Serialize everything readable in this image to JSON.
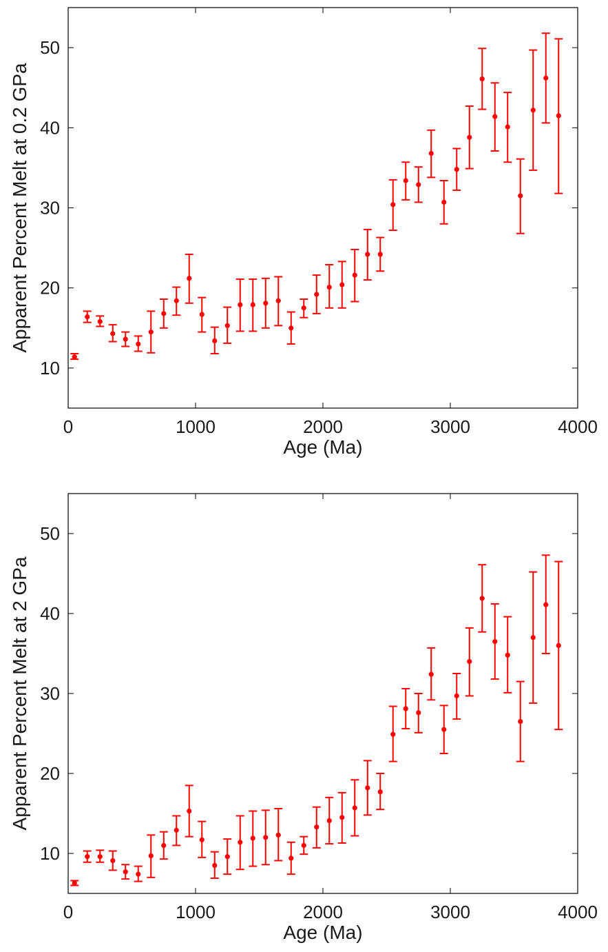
{
  "chart_data": [
    {
      "type": "scatter",
      "title": "",
      "xlabel": "Age (Ma)",
      "ylabel": "Apparent Percent Melt at 0.2 GPa",
      "xlim": [
        0,
        4000
      ],
      "ylim": [
        5,
        55
      ],
      "xticks": [
        0,
        1000,
        2000,
        3000,
        4000
      ],
      "yticks": [
        10,
        20,
        30,
        40,
        50
      ],
      "x": [
        50,
        150,
        250,
        350,
        450,
        550,
        650,
        750,
        850,
        950,
        1050,
        1150,
        1250,
        1350,
        1450,
        1550,
        1650,
        1750,
        1850,
        1950,
        2050,
        2150,
        2250,
        2350,
        2450,
        2550,
        2650,
        2750,
        2850,
        2950,
        3050,
        3150,
        3250,
        3350,
        3450,
        3550,
        3650,
        3750,
        3850
      ],
      "series": [
        {
          "color": "#ff0000",
          "y": [
            11.4,
            16.4,
            15.8,
            14.3,
            13.6,
            13.0,
            14.5,
            16.8,
            18.4,
            21.2,
            16.7,
            13.4,
            15.3,
            17.9,
            17.9,
            18.1,
            18.4,
            15.0,
            17.5,
            19.2,
            20.1,
            20.4,
            21.6,
            24.2,
            24.2,
            30.4,
            33.4,
            32.9,
            36.8,
            30.7,
            34.8,
            38.8,
            46.1,
            41.4,
            40.1,
            31.5,
            42.2,
            46.2,
            41.5
          ],
          "lower": [
            11.1,
            15.7,
            15.2,
            13.3,
            12.7,
            12.1,
            11.9,
            15.0,
            16.6,
            18.1,
            14.5,
            11.8,
            13.1,
            14.6,
            14.6,
            15.0,
            15.3,
            13.0,
            16.3,
            16.8,
            17.5,
            17.5,
            18.3,
            21.0,
            22.1,
            27.2,
            31.0,
            30.7,
            33.8,
            28.0,
            32.2,
            34.9,
            42.3,
            37.1,
            35.7,
            26.8,
            34.7,
            40.6,
            31.8
          ],
          "upper": [
            11.8,
            17.1,
            16.5,
            15.4,
            14.5,
            14.0,
            17.1,
            18.6,
            20.1,
            24.2,
            18.8,
            15.1,
            17.6,
            21.1,
            21.1,
            21.2,
            21.4,
            17.0,
            18.6,
            21.6,
            22.9,
            23.3,
            24.8,
            27.3,
            26.3,
            33.5,
            35.7,
            35.1,
            39.7,
            33.4,
            37.4,
            42.7,
            49.9,
            45.6,
            44.4,
            36.1,
            49.7,
            51.8,
            51.1
          ]
        }
      ],
      "grid": false,
      "marker": "dot with error bars"
    },
    {
      "type": "scatter",
      "title": "",
      "xlabel": "Age (Ma)",
      "ylabel": "Apparent Percent Melt at 2 GPa",
      "xlim": [
        0,
        4000
      ],
      "ylim": [
        5,
        55
      ],
      "xticks": [
        0,
        1000,
        2000,
        3000,
        4000
      ],
      "yticks": [
        10,
        20,
        30,
        40,
        50
      ],
      "x": [
        50,
        150,
        250,
        350,
        450,
        550,
        650,
        750,
        850,
        950,
        1050,
        1150,
        1250,
        1350,
        1450,
        1550,
        1650,
        1750,
        1850,
        1950,
        2050,
        2150,
        2250,
        2350,
        2450,
        2550,
        2650,
        2750,
        2850,
        2950,
        3050,
        3150,
        3250,
        3350,
        3450,
        3550,
        3650,
        3750,
        3850
      ],
      "series": [
        {
          "color": "#ff0000",
          "y": [
            6.3,
            9.6,
            9.6,
            9.1,
            7.7,
            7.4,
            9.7,
            11.0,
            12.9,
            15.3,
            11.7,
            8.5,
            9.6,
            11.4,
            11.9,
            12.0,
            12.3,
            9.4,
            11.0,
            13.3,
            14.1,
            14.5,
            15.7,
            18.2,
            17.7,
            24.9,
            28.1,
            27.6,
            32.4,
            25.5,
            29.7,
            34.0,
            41.9,
            36.5,
            34.8,
            26.5,
            37.0,
            41.1,
            36.0
          ],
          "lower": [
            6.0,
            8.9,
            8.9,
            7.9,
            6.8,
            6.5,
            7.0,
            9.3,
            11.0,
            12.1,
            9.5,
            6.9,
            7.4,
            8.0,
            8.4,
            8.6,
            9.1,
            7.4,
            9.9,
            10.7,
            11.2,
            11.3,
            12.2,
            14.8,
            15.5,
            21.5,
            25.6,
            25.1,
            29.2,
            22.5,
            26.8,
            29.7,
            37.7,
            31.8,
            30.1,
            21.5,
            28.8,
            35.0,
            25.5
          ],
          "upper": [
            6.6,
            10.3,
            10.4,
            10.3,
            8.6,
            8.4,
            12.3,
            12.7,
            14.7,
            18.5,
            14.0,
            10.2,
            11.8,
            14.7,
            15.3,
            15.4,
            15.6,
            11.4,
            12.1,
            15.8,
            17.0,
            17.6,
            19.2,
            21.6,
            20.0,
            28.4,
            30.6,
            30.0,
            35.7,
            28.5,
            32.5,
            38.2,
            46.1,
            41.2,
            39.6,
            31.5,
            45.2,
            47.3,
            46.5
          ]
        }
      ],
      "grid": false,
      "marker": "dot with error bars"
    }
  ]
}
